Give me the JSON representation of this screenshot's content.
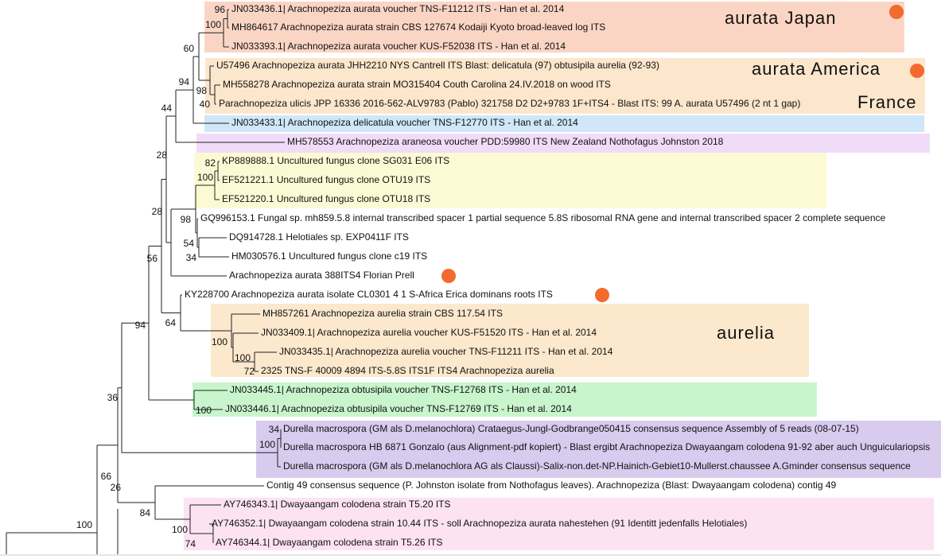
{
  "leaves": [
    "JN033436.1| Arachnopeziza aurata voucher TNS-F11212 ITS - Han et al. 2014",
    "MH864617 Arachnopeziza aurata strain CBS 127674 Kodaiji Kyoto broad-leaved log ITS",
    "JN033393.1| Arachnopeziza aurata voucher KUS-F52038 ITS - Han et al. 2014",
    "U57496 Arachnopeziza aurata JHH2210 NYS Cantrell ITS Blast: delicatula (97) obtusipila aurelia (92-93)",
    "MH558278 Arachnopeziza aurata strain MO315404 Couth Carolina 24.IV.2018 on wood ITS",
    "Parachnopeziza ulicis JPP 16336 2016-562-ALV9783 (Pablo) 321758 D2 D2+9783 1F+ITS4 - Blast ITS: 99 A. aurata U57496 (2 nt 1 gap)",
    "JN033433.1| Arachnopeziza delicatula voucher TNS-F12770 ITS - Han et al. 2014",
    "MH578553 Arachnopeziza araneosa voucher PDD:59980 ITS New Zealand Nothofagus Johnston 2018",
    "KP889888.1 Uncultured fungus clone SG031 E06 ITS",
    "EF521221.1 Uncultured fungus clone OTU19 ITS",
    "EF521220.1 Uncultured fungus clone OTU18 ITS",
    "GQ996153.1 Fungal sp. mh859.5.8 internal transcribed spacer 1 partial sequence 5.8S ribosomal RNA gene and internal transcribed spacer 2 complete sequence",
    "DQ914728.1 Helotiales sp. EXP0411F ITS",
    "HM030576.1 Uncultured fungus clone c19 ITS",
    "Arachnopeziza aurata 388ITS4 Florian Prell",
    "KY228700 Arachnopeziza aurata isolate CL0301 4 1 S-Africa Erica dominans roots ITS",
    "MH857261 Arachnopeziza aurelia strain CBS 117.54 ITS",
    "JN033409.1| Arachnopeziza aurelia voucher KUS-F51520 ITS - Han et al. 2014",
    "JN033435.1| Arachnopeziza aurelia voucher TNS-F11211 ITS - Han et al. 2014",
    "2325 TNS-F 40009 4894 ITS-5.8S ITS1F ITS4 Arachnopeziza aurelia",
    "JN033445.1| Arachnopeziza obtusipila voucher TNS-F12768 ITS - Han et al. 2014",
    "JN033446.1| Arachnopeziza obtusipila voucher TNS-F12769 ITS - Han et al. 2014",
    "Durella macrospora (GM als D.melanochlora) Crataegus-Jungl-Godbrange050415 consensus sequence Assembly of 5 reads (08-07-15)",
    "Durella macrospora HB 6871 Gonzalo (aus Alignment-pdf kopiert) - Blast ergibt Arachnopeziza Dwayaangam colodena 91-92 aber auch Unguiculariopsis",
    "Durella macrospora (GM als D.melanochlora AG als Claussi)-Salix-non.det-NP.Hainich-Gebiet10-Mullerst.chaussee A.Gminder consensus sequence",
    "Contig 49 consensus sequence (P. Johnston isolate from Nothofagus leaves). Arachnopeziza (Blast: Dwayaangam colodena) contig 49",
    "AY746343.1| Dwayaangam colodena strain T5.20 ITS",
    "AY746352.1| Dwayaangam colodena strain 10.44 ITS - soll Arachnopeziza aurata nahestehen (91 Identitt jedenfalls Helotiales)",
    "AY746344.1| Dwayaangam colodena strain T5.26 ITS"
  ],
  "supports": [
    96,
    100,
    60,
    94,
    98,
    40,
    44,
    28,
    82,
    100,
    28,
    98,
    54,
    34,
    56,
    64,
    94,
    100,
    100,
    72,
    36,
    100,
    34,
    100,
    66,
    26,
    84,
    100,
    74,
    100
  ],
  "groups": [
    "aurata Japan",
    "aurata America",
    "France",
    "aurelia"
  ]
}
